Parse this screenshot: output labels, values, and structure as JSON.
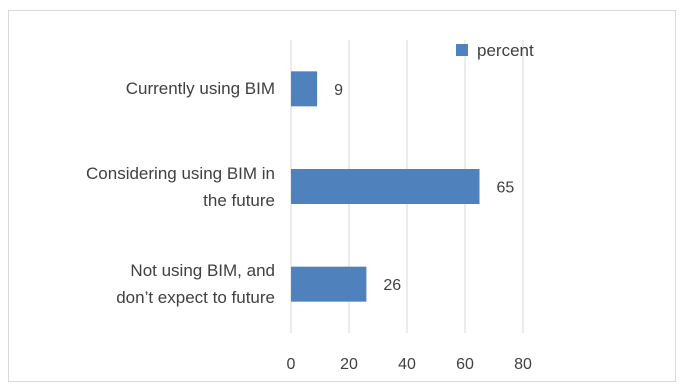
{
  "chart_data": {
    "type": "bar",
    "orientation": "horizontal",
    "categories": [
      "Currently using BIM",
      "Considering using BIM in the future",
      "Not  using BIM, and don’t expect to  future"
    ],
    "category_lines": [
      [
        "Currently using BIM"
      ],
      [
        "Considering using BIM in",
        "the future"
      ],
      [
        "Not  using BIM, and",
        "don’t expect to  future"
      ]
    ],
    "series": [
      {
        "name": "percent",
        "values": [
          9,
          65,
          26
        ],
        "color": "#4f81bd"
      }
    ],
    "xlim": [
      0,
      80
    ],
    "xticks": [
      0,
      20,
      40,
      60,
      80
    ],
    "grid": true,
    "legend": "top-right",
    "title": "",
    "xlabel": "",
    "ylabel": ""
  }
}
